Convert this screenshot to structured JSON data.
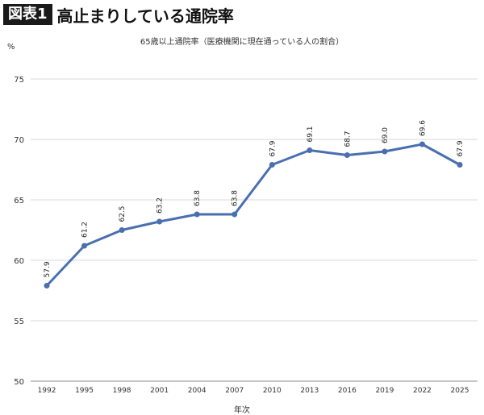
{
  "header": {
    "badge": "図表1",
    "title": "高止まりしている通院率"
  },
  "chart_data": {
    "type": "line",
    "title": "65歳以上通院率（医療機関に現在通っている人の割合）",
    "unit": "%",
    "xlabel": "年次",
    "ylabel": "",
    "categories": [
      "1992",
      "1995",
      "1998",
      "2001",
      "2004",
      "2007",
      "2010",
      "2013",
      "2016",
      "2019",
      "2022",
      "2025"
    ],
    "series": [
      {
        "values": [
          57.9,
          61.2,
          62.5,
          63.2,
          63.8,
          63.8,
          67.9,
          69.1,
          68.7,
          69.0,
          69.6,
          67.9
        ],
        "labels": [
          "57.9",
          "61.2",
          "62.5",
          "63.2",
          "63.8",
          "63.8",
          "67.9",
          "69.1",
          "68.7",
          "69.0",
          "69.6",
          "67.9"
        ],
        "color": "#4a6fb0"
      }
    ],
    "ylim": [
      50,
      75
    ],
    "yticks": [
      "50",
      "55",
      "60",
      "65",
      "70",
      "75"
    ],
    "grid": true,
    "legend": "none"
  }
}
